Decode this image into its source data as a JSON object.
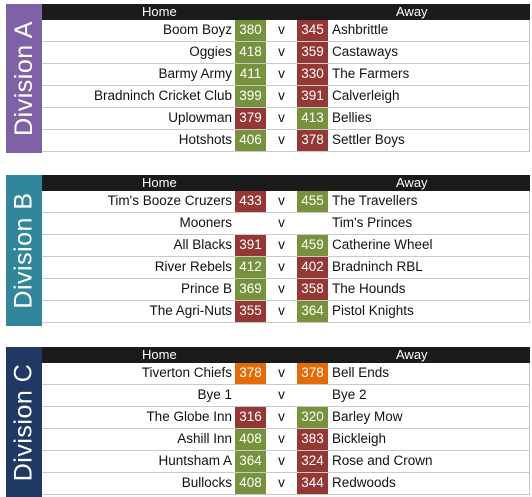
{
  "columns": {
    "home": "Home",
    "away": "Away",
    "vs": "v"
  },
  "colors": {
    "win": "#76923c",
    "loss": "#953735",
    "draw": "#e36c09"
  },
  "divisions": [
    {
      "label": "Division A",
      "color": "#7f62a6",
      "matches": [
        {
          "home": "Boom Boyz",
          "home_score": "380",
          "home_result": "win",
          "away_score": "345",
          "away_result": "loss",
          "away": "Ashbrittle"
        },
        {
          "home": "Oggies",
          "home_score": "418",
          "home_result": "win",
          "away_score": "359",
          "away_result": "loss",
          "away": "Castaways"
        },
        {
          "home": "Barmy Army",
          "home_score": "411",
          "home_result": "win",
          "away_score": "330",
          "away_result": "loss",
          "away": "The Farmers"
        },
        {
          "home": "Bradninch Cricket Club",
          "home_score": "399",
          "home_result": "win",
          "away_score": "391",
          "away_result": "loss",
          "away": "Calverleigh"
        },
        {
          "home": "Uplowman",
          "home_score": "379",
          "home_result": "loss",
          "away_score": "413",
          "away_result": "win",
          "away": "Bellies"
        },
        {
          "home": "Hotshots",
          "home_score": "406",
          "home_result": "win",
          "away_score": "378",
          "away_result": "loss",
          "away": "Settler Boys"
        }
      ]
    },
    {
      "label": "Division B",
      "color": "#31869b",
      "matches": [
        {
          "home": "Tim's Booze Cruzers",
          "home_score": "433",
          "home_result": "loss",
          "away_score": "455",
          "away_result": "win",
          "away": "The Travellers"
        },
        {
          "home": "Mooners",
          "home_score": "",
          "home_result": "blank",
          "away_score": "",
          "away_result": "blank",
          "away": "Tim's Princes"
        },
        {
          "home": "All Blacks",
          "home_score": "391",
          "home_result": "loss",
          "away_score": "459",
          "away_result": "win",
          "away": "Catherine Wheel"
        },
        {
          "home": "River Rebels",
          "home_score": "412",
          "home_result": "win",
          "away_score": "402",
          "away_result": "loss",
          "away": "Bradninch RBL"
        },
        {
          "home": "Prince B",
          "home_score": "369",
          "home_result": "win",
          "away_score": "358",
          "away_result": "loss",
          "away": "The Hounds"
        },
        {
          "home": "The Agri-Nuts",
          "home_score": "355",
          "home_result": "loss",
          "away_score": "364",
          "away_result": "win",
          "away": "Pistol Knights"
        }
      ]
    },
    {
      "label": "Division C",
      "color": "#1f3864",
      "matches": [
        {
          "home": "Tiverton Chiefs",
          "home_score": "378",
          "home_result": "draw",
          "away_score": "378",
          "away_result": "draw",
          "away": "Bell Ends"
        },
        {
          "home": "Bye 1",
          "home_score": "",
          "home_result": "blank",
          "away_score": "",
          "away_result": "blank",
          "away": "Bye 2"
        },
        {
          "home": "The Globe Inn",
          "home_score": "316",
          "home_result": "loss",
          "away_score": "320",
          "away_result": "win",
          "away": "Barley Mow"
        },
        {
          "home": "Ashill Inn",
          "home_score": "408",
          "home_result": "win",
          "away_score": "383",
          "away_result": "loss",
          "away": "Bickleigh"
        },
        {
          "home": "Huntsham A",
          "home_score": "364",
          "home_result": "win",
          "away_score": "324",
          "away_result": "loss",
          "away": "Rose and Crown"
        },
        {
          "home": "Bullocks",
          "home_score": "408",
          "home_result": "win",
          "away_score": "344",
          "away_result": "loss",
          "away": "Redwoods"
        }
      ]
    }
  ]
}
